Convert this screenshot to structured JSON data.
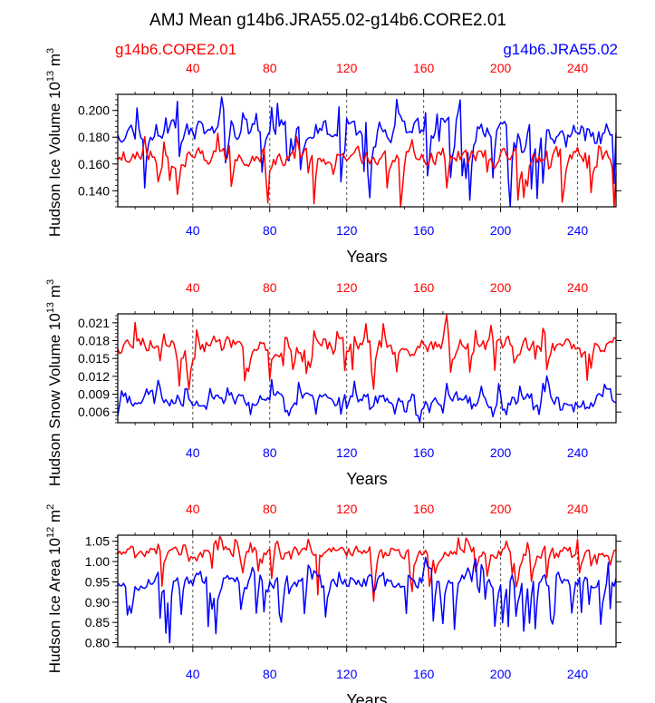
{
  "title": "AMJ Mean g14b6.JRA55.02-g14b6.CORE2.01",
  "legend": {
    "left": {
      "label": "g14b6.CORE2.01",
      "color": "#ff0000"
    },
    "right": {
      "label": "g14b6.JRA55.02",
      "color": "#0000ff"
    }
  },
  "colors": {
    "core": "#ff0000",
    "jra": "#0000ff"
  },
  "chart_data": [
    {
      "type": "line",
      "id": "ice-volume",
      "ylabel_main": "Hudson Ice Volume 10",
      "ylabel_exp": "13",
      "ylabel_unit": " m",
      "ylabel_unit_exp": "3",
      "xlabel": "Years",
      "xlim": [
        1,
        260
      ],
      "ylim": [
        0.128,
        0.212
      ],
      "yticks": [
        0.14,
        0.16,
        0.18,
        0.2
      ],
      "ytick_labels": [
        "0.140",
        "0.160",
        "0.180",
        "0.200"
      ],
      "xticks": [
        40,
        80,
        120,
        160,
        200,
        240
      ],
      "xtick_labels": [
        "40",
        "80",
        "120",
        "160",
        "200",
        "240"
      ],
      "vlines": [
        40,
        80,
        120,
        160,
        200,
        240
      ],
      "series": [
        {
          "name": "g14b6.JRA55.02",
          "color": "#0000ff",
          "base": 0.185,
          "amp": 0.012,
          "dip_depth": 0.05,
          "min": 0.128,
          "max": 0.21,
          "seed": 11
        },
        {
          "name": "g14b6.CORE2.01",
          "color": "#ff0000",
          "base": 0.166,
          "amp": 0.01,
          "dip_depth": 0.035,
          "min": 0.128,
          "max": 0.19,
          "seed": 23
        }
      ]
    },
    {
      "type": "line",
      "id": "snow-volume",
      "ylabel_main": "Hudson Snow Volume 10",
      "ylabel_exp": "13",
      "ylabel_unit": " m",
      "ylabel_unit_exp": "3",
      "xlabel": "Years",
      "xlim": [
        1,
        260
      ],
      "ylim": [
        0.0042,
        0.0225
      ],
      "yticks": [
        0.006,
        0.009,
        0.012,
        0.015,
        0.018,
        0.021
      ],
      "ytick_labels": [
        "0.006",
        "0.009",
        "0.012",
        "0.015",
        "0.018",
        "0.021"
      ],
      "xticks": [
        40,
        80,
        120,
        160,
        200,
        240
      ],
      "xtick_labels": [
        "40",
        "80",
        "120",
        "160",
        "200",
        "240"
      ],
      "vlines": [
        40,
        80,
        120,
        160,
        200,
        240
      ],
      "series": [
        {
          "name": "g14b6.CORE2.01",
          "color": "#ff0000",
          "base": 0.0172,
          "amp": 0.0022,
          "dip_depth": 0.006,
          "min": 0.0075,
          "max": 0.0225,
          "seed": 37
        },
        {
          "name": "g14b6.JRA55.02",
          "color": "#0000ff",
          "base": 0.0082,
          "amp": 0.0018,
          "dip_depth": 0.0025,
          "min": 0.0042,
          "max": 0.0135,
          "seed": 41
        }
      ]
    },
    {
      "type": "line",
      "id": "ice-area",
      "ylabel_main": "Hudson Ice Area 10",
      "ylabel_exp": "12",
      "ylabel_unit": " m",
      "ylabel_unit_exp": "2",
      "xlabel": "Years",
      "xlim": [
        1,
        260
      ],
      "ylim": [
        0.79,
        1.065
      ],
      "yticks": [
        0.8,
        0.85,
        0.9,
        0.95,
        1.0,
        1.05
      ],
      "ytick_labels": [
        "0.80",
        "0.85",
        "0.90",
        "0.95",
        "1.00",
        "1.05"
      ],
      "xticks": [
        40,
        80,
        120,
        160,
        200,
        240
      ],
      "xtick_labels": [
        "40",
        "80",
        "120",
        "160",
        "200",
        "240"
      ],
      "vlines": [
        40,
        80,
        120,
        160,
        200,
        240
      ],
      "series": [
        {
          "name": "g14b6.CORE2.01",
          "color": "#ff0000",
          "base": 1.025,
          "amp": 0.022,
          "dip_depth": 0.1,
          "min": 0.86,
          "max": 1.062,
          "seed": 53
        },
        {
          "name": "g14b6.JRA55.02",
          "color": "#0000ff",
          "base": 0.955,
          "amp": 0.028,
          "dip_depth": 0.13,
          "min": 0.79,
          "max": 1.01,
          "seed": 67
        }
      ]
    }
  ]
}
